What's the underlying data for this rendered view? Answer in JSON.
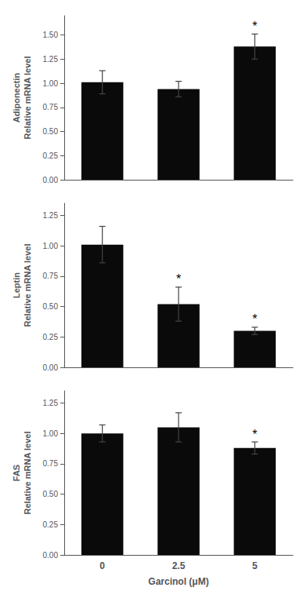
{
  "chart_data": [
    {
      "type": "bar",
      "ylabel": "Adiponectin\nRelative mRNA level",
      "categories": [
        null,
        null,
        null
      ],
      "values": [
        1.01,
        0.94,
        1.38
      ],
      "errors": [
        0.12,
        0.08,
        0.13
      ],
      "annotations": [
        null,
        null,
        "*"
      ],
      "color": "#0a0a0a",
      "ylim": [
        0,
        1.7
      ],
      "yticks": [
        {
          "value": 0,
          "label": "0.00"
        },
        0.25,
        {
          "value": 0.5,
          "label": "0.50"
        },
        0.75,
        {
          "value": 1,
          "label": "1.00"
        },
        1.25,
        {
          "value": 1.5,
          "label": "1.50"
        }
      ],
      "grid": false
    },
    {
      "type": "bar",
      "ylabel": "Leptin\nRelative mRNA level",
      "categories": [
        null,
        null,
        null
      ],
      "values": [
        1.01,
        0.52,
        0.3
      ],
      "errors": [
        0.15,
        0.14,
        0.03
      ],
      "annotations": [
        null,
        "*",
        "*"
      ],
      "color": "#0a0a0a",
      "ylim": [
        0,
        1.35
      ],
      "yticks": [
        {
          "value": 0,
          "label": "0.00"
        },
        0.25,
        {
          "value": 0.5,
          "label": "0.50"
        },
        0.75,
        {
          "value": 1,
          "label": "1.00"
        },
        1.25
      ],
      "grid": false
    },
    {
      "type": "bar",
      "ylabel": "FAS\nRelative mRNA level",
      "xlabel": "Garcinol (μM)",
      "categories": [
        "0",
        "2.5",
        "5"
      ],
      "values": [
        1.0,
        1.05,
        0.88
      ],
      "errors": [
        0.07,
        0.12,
        0.05
      ],
      "annotations": [
        null,
        null,
        "*"
      ],
      "color": "#0a0a0a",
      "ylim": [
        0,
        1.35
      ],
      "yticks": [
        {
          "value": 0,
          "label": "0.00"
        },
        0.25,
        {
          "value": 0.5,
          "label": "0.50"
        },
        0.75,
        {
          "value": 1,
          "label": "1.00"
        },
        1.25
      ],
      "grid": false
    }
  ]
}
